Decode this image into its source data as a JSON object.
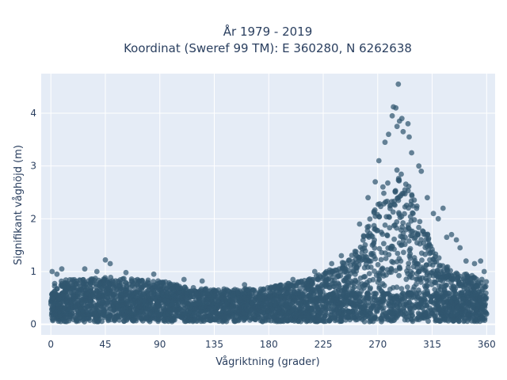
{
  "chart_data": {
    "type": "scatter",
    "title": [
      "År 1979 - 2019",
      "Koordinat (Sweref 99 TM): E 360280, N 6262638"
    ],
    "xlabel": "Vågriktning (grader)",
    "ylabel": "Signifikant våghöjd (m)",
    "xlim": [
      -8,
      367
    ],
    "ylim": [
      -0.2,
      4.75
    ],
    "xticks": [
      0,
      45,
      90,
      135,
      180,
      225,
      270,
      315,
      360
    ],
    "yticks": [
      0,
      1,
      2,
      3,
      4
    ],
    "grid": true,
    "legend": "none",
    "marker_color": "#30566f",
    "plot_bgcolor": "#e5ecf6",
    "density_profile": {
      "direction": [
        0,
        15,
        30,
        45,
        60,
        75,
        90,
        105,
        120,
        135,
        150,
        165,
        180,
        195,
        210,
        225,
        240,
        255,
        262,
        270,
        277,
        285,
        292,
        300,
        307,
        315,
        322,
        330,
        345,
        360
      ],
      "bulk_height": [
        0.75,
        0.8,
        0.82,
        0.85,
        0.82,
        0.8,
        0.78,
        0.7,
        0.65,
        0.62,
        0.62,
        0.63,
        0.65,
        0.72,
        0.8,
        0.92,
        1.1,
        1.45,
        1.85,
        2.35,
        2.7,
        2.9,
        2.75,
        2.4,
        1.9,
        1.45,
        1.15,
        1.0,
        0.9,
        0.8
      ]
    },
    "outliers": [
      {
        "x": 1,
        "y": 1.0
      },
      {
        "x": 5,
        "y": 0.95
      },
      {
        "x": 9,
        "y": 1.05
      },
      {
        "x": 28,
        "y": 1.05
      },
      {
        "x": 38,
        "y": 1.0
      },
      {
        "x": 45,
        "y": 1.22
      },
      {
        "x": 49,
        "y": 1.15
      },
      {
        "x": 62,
        "y": 0.98
      },
      {
        "x": 85,
        "y": 0.95
      },
      {
        "x": 110,
        "y": 0.85
      },
      {
        "x": 125,
        "y": 0.82
      },
      {
        "x": 160,
        "y": 0.75
      },
      {
        "x": 200,
        "y": 0.85
      },
      {
        "x": 218,
        "y": 1.0
      },
      {
        "x": 232,
        "y": 1.15
      },
      {
        "x": 240,
        "y": 1.3
      },
      {
        "x": 255,
        "y": 1.9
      },
      {
        "x": 262,
        "y": 2.4
      },
      {
        "x": 268,
        "y": 2.7
      },
      {
        "x": 271,
        "y": 3.1
      },
      {
        "x": 276,
        "y": 3.45
      },
      {
        "x": 279,
        "y": 3.6
      },
      {
        "x": 282,
        "y": 3.95
      },
      {
        "x": 283,
        "y": 4.12
      },
      {
        "x": 285,
        "y": 4.1
      },
      {
        "x": 286,
        "y": 3.75
      },
      {
        "x": 287,
        "y": 4.55
      },
      {
        "x": 288,
        "y": 3.85
      },
      {
        "x": 290,
        "y": 3.9
      },
      {
        "x": 291,
        "y": 3.65
      },
      {
        "x": 295,
        "y": 3.8
      },
      {
        "x": 296,
        "y": 3.55
      },
      {
        "x": 298,
        "y": 3.25
      },
      {
        "x": 304,
        "y": 3.0
      },
      {
        "x": 306,
        "y": 2.9
      },
      {
        "x": 311,
        "y": 2.4
      },
      {
        "x": 316,
        "y": 2.1
      },
      {
        "x": 320,
        "y": 2.0
      },
      {
        "x": 324,
        "y": 2.2
      },
      {
        "x": 327,
        "y": 1.65
      },
      {
        "x": 331,
        "y": 1.7
      },
      {
        "x": 335,
        "y": 1.6
      },
      {
        "x": 338,
        "y": 1.45
      },
      {
        "x": 343,
        "y": 1.2
      },
      {
        "x": 350,
        "y": 1.15
      },
      {
        "x": 355,
        "y": 1.2
      },
      {
        "x": 358,
        "y": 1.0
      }
    ]
  }
}
